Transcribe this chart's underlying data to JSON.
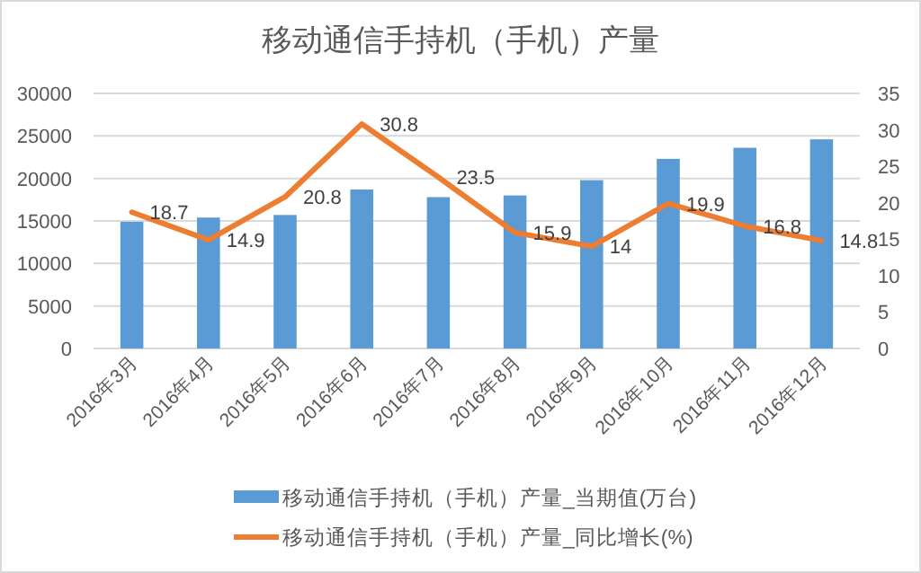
{
  "chart_data": {
    "type": "bar",
    "title": "移动通信手持机（手机）产量",
    "categories": [
      "2016年3月",
      "2016年4月",
      "2016年5月",
      "2016年6月",
      "2016年7月",
      "2016年8月",
      "2016年9月",
      "2016年10月",
      "2016年11月",
      "2016年12月"
    ],
    "series": [
      {
        "name": "移动通信手持机（手机）产量_当期值(万台)",
        "color": "#5b9bd5",
        "values": [
          14900,
          15400,
          15700,
          18700,
          17800,
          18000,
          19800,
          22300,
          23600,
          24600
        ]
      },
      {
        "name": "移动通信手持机（手机）产量_同比增长(%)",
        "type": "line",
        "axis": "y2",
        "color": "#ed7d31",
        "values": [
          18.7,
          14.9,
          20.8,
          30.8,
          23.5,
          15.9,
          14,
          19.9,
          16.8,
          14.8
        ],
        "data_labels": true
      }
    ],
    "ylim": [
      0,
      30000
    ],
    "yticks": [
      0,
      5000,
      10000,
      15000,
      20000,
      25000,
      30000
    ],
    "y2lim": [
      0,
      35
    ],
    "y2ticks": [
      0,
      5,
      10,
      15,
      20,
      25,
      30,
      35
    ],
    "grid": "y",
    "legend": "bottom",
    "marker": "none",
    "line_style": "solid"
  }
}
